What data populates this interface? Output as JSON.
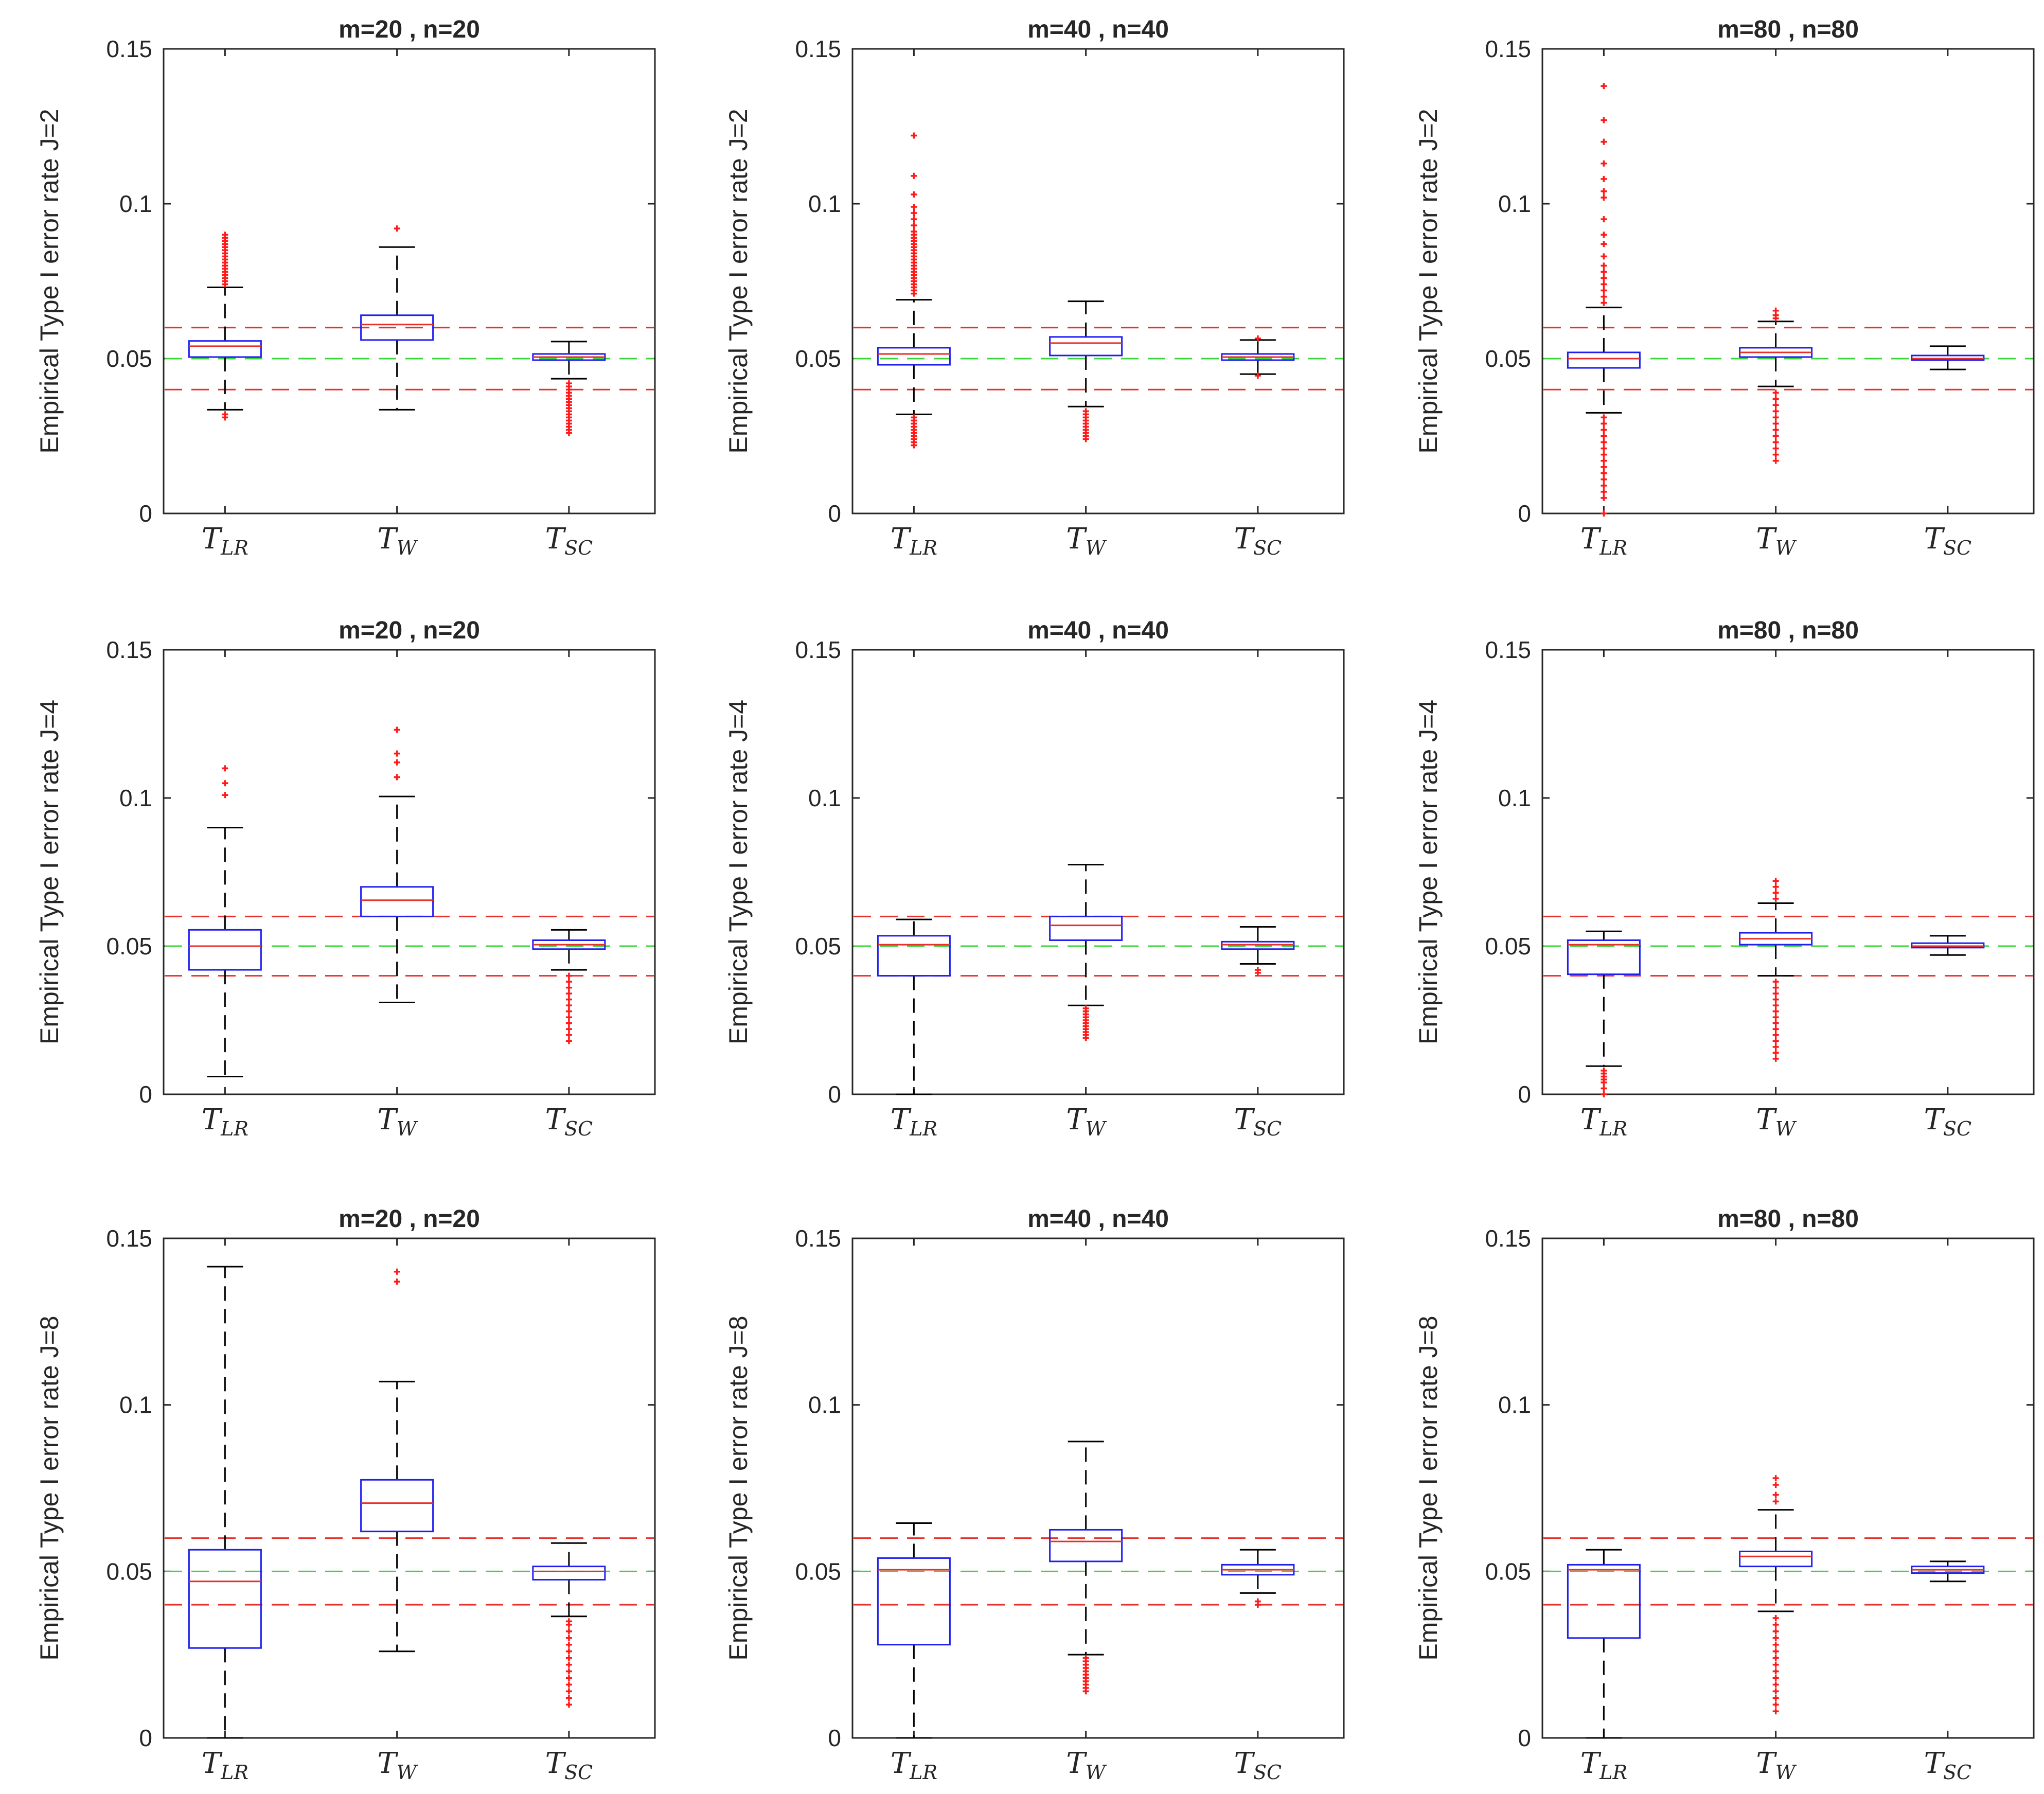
{
  "chart_data": [
    {
      "type": "box",
      "title": "m=20 , n=20",
      "ylabel": "Empirical Type I error rate J=2",
      "ylim": [
        0,
        0.15
      ],
      "yticks": [
        "0",
        "0.05",
        "0.1",
        "0.15"
      ],
      "reference_lines": [
        {
          "y": 0.06,
          "color": "#e8302a"
        },
        {
          "y": 0.05,
          "color": "#3bd63b"
        },
        {
          "y": 0.04,
          "color": "#e8302a"
        }
      ],
      "boxes": [
        {
          "label": "T",
          "sub": "LR",
          "q1": 0.0505,
          "median": 0.054,
          "q3": 0.0557,
          "whisker_low": 0.0335,
          "whisker_high": 0.073,
          "outliers": [
            0.031,
            0.032,
            0.074,
            0.075,
            0.076,
            0.077,
            0.078,
            0.079,
            0.08,
            0.081,
            0.082,
            0.083,
            0.084,
            0.085,
            0.086,
            0.087,
            0.088,
            0.089,
            0.09
          ]
        },
        {
          "label": "T",
          "sub": "W",
          "q1": 0.056,
          "median": 0.061,
          "q3": 0.064,
          "whisker_low": 0.0335,
          "whisker_high": 0.086,
          "outliers": [
            0.092
          ]
        },
        {
          "label": "T",
          "sub": "SC",
          "q1": 0.0495,
          "median": 0.0505,
          "q3": 0.0515,
          "whisker_low": 0.0435,
          "whisker_high": 0.0555,
          "outliers": [
            0.026,
            0.027,
            0.028,
            0.029,
            0.03,
            0.031,
            0.032,
            0.033,
            0.034,
            0.035,
            0.036,
            0.037,
            0.038,
            0.039,
            0.04,
            0.041,
            0.042
          ]
        }
      ]
    },
    {
      "type": "box",
      "title": "m=40 , n=40",
      "ylabel": "Empirical Type I error rate J=2",
      "ylim": [
        0,
        0.15
      ],
      "yticks": [
        "0",
        "0.05",
        "0.1",
        "0.15"
      ],
      "reference_lines": [
        {
          "y": 0.06,
          "color": "#e8302a"
        },
        {
          "y": 0.05,
          "color": "#3bd63b"
        },
        {
          "y": 0.04,
          "color": "#e8302a"
        }
      ],
      "boxes": [
        {
          "label": "T",
          "sub": "LR",
          "q1": 0.048,
          "median": 0.0515,
          "q3": 0.0535,
          "whisker_low": 0.032,
          "whisker_high": 0.069,
          "outliers": [
            0.022,
            0.023,
            0.024,
            0.025,
            0.026,
            0.027,
            0.028,
            0.029,
            0.03,
            0.031,
            0.071,
            0.072,
            0.073,
            0.074,
            0.075,
            0.076,
            0.077,
            0.078,
            0.079,
            0.08,
            0.081,
            0.082,
            0.083,
            0.084,
            0.085,
            0.086,
            0.087,
            0.088,
            0.089,
            0.09,
            0.091,
            0.093,
            0.095,
            0.097,
            0.099,
            0.103,
            0.109,
            0.122
          ]
        },
        {
          "label": "T",
          "sub": "W",
          "q1": 0.051,
          "median": 0.055,
          "q3": 0.057,
          "whisker_low": 0.0345,
          "whisker_high": 0.0685,
          "outliers": [
            0.024,
            0.025,
            0.026,
            0.027,
            0.028,
            0.029,
            0.03,
            0.031,
            0.032,
            0.033
          ]
        },
        {
          "label": "T",
          "sub": "SC",
          "q1": 0.0495,
          "median": 0.0505,
          "q3": 0.0515,
          "whisker_low": 0.045,
          "whisker_high": 0.056,
          "outliers": [
            0.0445,
            0.0565
          ]
        }
      ]
    },
    {
      "type": "box",
      "title": "m=80 , n=80",
      "ylabel": "Empirical Type I error rate J=2",
      "ylim": [
        0,
        0.15
      ],
      "yticks": [
        "0",
        "0.05",
        "0.1",
        "0.15"
      ],
      "reference_lines": [
        {
          "y": 0.06,
          "color": "#e8302a"
        },
        {
          "y": 0.05,
          "color": "#3bd63b"
        },
        {
          "y": 0.04,
          "color": "#e8302a"
        }
      ],
      "boxes": [
        {
          "label": "T",
          "sub": "LR",
          "q1": 0.047,
          "median": 0.05,
          "q3": 0.052,
          "whisker_low": 0.0325,
          "whisker_high": 0.0665,
          "outliers": [
            0.0,
            0.005,
            0.007,
            0.009,
            0.011,
            0.013,
            0.015,
            0.017,
            0.019,
            0.021,
            0.023,
            0.025,
            0.027,
            0.029,
            0.031,
            0.068,
            0.07,
            0.072,
            0.074,
            0.076,
            0.078,
            0.08,
            0.083,
            0.087,
            0.09,
            0.095,
            0.102,
            0.104,
            0.108,
            0.113,
            0.12,
            0.127,
            0.138
          ]
        },
        {
          "label": "T",
          "sub": "W",
          "q1": 0.0505,
          "median": 0.052,
          "q3": 0.0535,
          "whisker_low": 0.041,
          "whisker_high": 0.062,
          "outliers": [
            0.017,
            0.019,
            0.021,
            0.023,
            0.025,
            0.027,
            0.029,
            0.031,
            0.033,
            0.035,
            0.037,
            0.039,
            0.063,
            0.064,
            0.0655
          ]
        },
        {
          "label": "T",
          "sub": "SC",
          "q1": 0.0495,
          "median": 0.05,
          "q3": 0.051,
          "whisker_low": 0.0465,
          "whisker_high": 0.054,
          "outliers": []
        }
      ]
    },
    {
      "type": "box",
      "title": "m=20 , n=20",
      "ylabel": "Empirical Type I error rate J=4",
      "ylim": [
        0,
        0.15
      ],
      "yticks": [
        "0",
        "0.05",
        "0.1",
        "0.15"
      ],
      "reference_lines": [
        {
          "y": 0.06,
          "color": "#e8302a"
        },
        {
          "y": 0.05,
          "color": "#3bd63b"
        },
        {
          "y": 0.04,
          "color": "#e8302a"
        }
      ],
      "boxes": [
        {
          "label": "T",
          "sub": "LR",
          "q1": 0.042,
          "median": 0.05,
          "q3": 0.0555,
          "whisker_low": 0.006,
          "whisker_high": 0.09,
          "outliers": [
            0.101,
            0.105,
            0.11
          ]
        },
        {
          "label": "T",
          "sub": "W",
          "q1": 0.06,
          "median": 0.0655,
          "q3": 0.07,
          "whisker_low": 0.031,
          "whisker_high": 0.1005,
          "outliers": [
            0.107,
            0.112,
            0.115,
            0.123
          ]
        },
        {
          "label": "T",
          "sub": "SC",
          "q1": 0.049,
          "median": 0.0505,
          "q3": 0.052,
          "whisker_low": 0.042,
          "whisker_high": 0.0555,
          "outliers": [
            0.018,
            0.02,
            0.022,
            0.024,
            0.026,
            0.028,
            0.03,
            0.032,
            0.034,
            0.036,
            0.038,
            0.04
          ]
        }
      ]
    },
    {
      "type": "box",
      "title": "m=40 , n=40",
      "ylabel": "Empirical Type I error rate J=4",
      "ylim": [
        0,
        0.15
      ],
      "yticks": [
        "0",
        "0.05",
        "0.1",
        "0.15"
      ],
      "reference_lines": [
        {
          "y": 0.06,
          "color": "#e8302a"
        },
        {
          "y": 0.05,
          "color": "#3bd63b"
        },
        {
          "y": 0.04,
          "color": "#e8302a"
        }
      ],
      "boxes": [
        {
          "label": "T",
          "sub": "LR",
          "q1": 0.04,
          "median": 0.0505,
          "q3": 0.0535,
          "whisker_low": 0.0,
          "whisker_high": 0.059,
          "outliers": []
        },
        {
          "label": "T",
          "sub": "W",
          "q1": 0.052,
          "median": 0.057,
          "q3": 0.06,
          "whisker_low": 0.03,
          "whisker_high": 0.0775,
          "outliers": [
            0.019,
            0.02,
            0.021,
            0.022,
            0.023,
            0.024,
            0.025,
            0.026,
            0.027,
            0.028,
            0.029
          ]
        },
        {
          "label": "T",
          "sub": "SC",
          "q1": 0.049,
          "median": 0.0505,
          "q3": 0.0515,
          "whisker_low": 0.044,
          "whisker_high": 0.0565,
          "outliers": [
            0.041,
            0.042
          ]
        }
      ]
    },
    {
      "type": "box",
      "title": "m=80 , n=80",
      "ylabel": "Empirical Type I error rate J=4",
      "ylim": [
        0,
        0.15
      ],
      "yticks": [
        "0",
        "0.05",
        "0.1",
        "0.15"
      ],
      "reference_lines": [
        {
          "y": 0.06,
          "color": "#e8302a"
        },
        {
          "y": 0.05,
          "color": "#3bd63b"
        },
        {
          "y": 0.04,
          "color": "#e8302a"
        }
      ],
      "boxes": [
        {
          "label": "T",
          "sub": "LR",
          "q1": 0.0405,
          "median": 0.0505,
          "q3": 0.052,
          "whisker_low": 0.0095,
          "whisker_high": 0.055,
          "outliers": [
            0.0,
            0.002,
            0.004,
            0.005,
            0.006,
            0.007,
            0.008
          ]
        },
        {
          "label": "T",
          "sub": "W",
          "q1": 0.0505,
          "median": 0.0525,
          "q3": 0.0545,
          "whisker_low": 0.04,
          "whisker_high": 0.0645,
          "outliers": [
            0.012,
            0.014,
            0.016,
            0.018,
            0.02,
            0.022,
            0.024,
            0.026,
            0.028,
            0.03,
            0.032,
            0.034,
            0.036,
            0.038,
            0.066,
            0.068,
            0.07,
            0.072
          ]
        },
        {
          "label": "T",
          "sub": "SC",
          "q1": 0.0495,
          "median": 0.05,
          "q3": 0.051,
          "whisker_low": 0.047,
          "whisker_high": 0.0535,
          "outliers": []
        }
      ]
    },
    {
      "type": "box",
      "title": "m=20 , n=20",
      "ylabel": "Empirical Type I error rate J=8",
      "ylim": [
        0,
        0.15
      ],
      "yticks": [
        "0",
        "0.05",
        "0.1",
        "0.15"
      ],
      "reference_lines": [
        {
          "y": 0.06,
          "color": "#e8302a"
        },
        {
          "y": 0.05,
          "color": "#3bd63b"
        },
        {
          "y": 0.04,
          "color": "#e8302a"
        }
      ],
      "boxes": [
        {
          "label": "T",
          "sub": "LR",
          "q1": 0.027,
          "median": 0.047,
          "q3": 0.0565,
          "whisker_low": 0.0,
          "whisker_high": 0.1415,
          "outliers": []
        },
        {
          "label": "T",
          "sub": "W",
          "q1": 0.062,
          "median": 0.0705,
          "q3": 0.0775,
          "whisker_low": 0.026,
          "whisker_high": 0.107,
          "outliers": [
            0.137,
            0.14
          ]
        },
        {
          "label": "T",
          "sub": "SC",
          "q1": 0.0475,
          "median": 0.05,
          "q3": 0.0515,
          "whisker_low": 0.0365,
          "whisker_high": 0.0585,
          "outliers": [
            0.01,
            0.012,
            0.014,
            0.016,
            0.018,
            0.02,
            0.022,
            0.024,
            0.026,
            0.028,
            0.03,
            0.032,
            0.034,
            0.035
          ]
        }
      ]
    },
    {
      "type": "box",
      "title": "m=40 , n=40",
      "ylabel": "Empirical Type I error rate J=8",
      "ylim": [
        0,
        0.15
      ],
      "yticks": [
        "0",
        "0.05",
        "0.1",
        "0.15"
      ],
      "reference_lines": [
        {
          "y": 0.06,
          "color": "#e8302a"
        },
        {
          "y": 0.05,
          "color": "#3bd63b"
        },
        {
          "y": 0.04,
          "color": "#e8302a"
        }
      ],
      "boxes": [
        {
          "label": "T",
          "sub": "LR",
          "q1": 0.028,
          "median": 0.0505,
          "q3": 0.054,
          "whisker_low": 0.0,
          "whisker_high": 0.0645,
          "outliers": []
        },
        {
          "label": "T",
          "sub": "W",
          "q1": 0.053,
          "median": 0.059,
          "q3": 0.0625,
          "whisker_low": 0.025,
          "whisker_high": 0.089,
          "outliers": [
            0.014,
            0.015,
            0.016,
            0.017,
            0.018,
            0.019,
            0.02,
            0.021,
            0.022,
            0.023,
            0.024
          ]
        },
        {
          "label": "T",
          "sub": "SC",
          "q1": 0.049,
          "median": 0.0505,
          "q3": 0.052,
          "whisker_low": 0.0435,
          "whisker_high": 0.0565,
          "outliers": [
            0.04,
            0.041
          ]
        }
      ]
    },
    {
      "type": "box",
      "title": "m=80 , n=80",
      "ylabel": "Empirical Type I error rate J=8",
      "ylim": [
        0,
        0.15
      ],
      "yticks": [
        "0",
        "0.05",
        "0.1",
        "0.15"
      ],
      "reference_lines": [
        {
          "y": 0.06,
          "color": "#e8302a"
        },
        {
          "y": 0.05,
          "color": "#3bd63b"
        },
        {
          "y": 0.04,
          "color": "#e8302a"
        }
      ],
      "boxes": [
        {
          "label": "T",
          "sub": "LR",
          "q1": 0.03,
          "median": 0.0505,
          "q3": 0.052,
          "whisker_low": 0.0,
          "whisker_high": 0.0565,
          "outliers": []
        },
        {
          "label": "T",
          "sub": "W",
          "q1": 0.0515,
          "median": 0.0545,
          "q3": 0.056,
          "whisker_low": 0.038,
          "whisker_high": 0.0685,
          "outliers": [
            0.008,
            0.01,
            0.012,
            0.014,
            0.016,
            0.018,
            0.02,
            0.022,
            0.024,
            0.026,
            0.028,
            0.03,
            0.032,
            0.034,
            0.036,
            0.071,
            0.073,
            0.076,
            0.078
          ]
        },
        {
          "label": "T",
          "sub": "SC",
          "q1": 0.0495,
          "median": 0.0505,
          "q3": 0.0515,
          "whisker_low": 0.047,
          "whisker_high": 0.053,
          "outliers": []
        }
      ]
    }
  ]
}
